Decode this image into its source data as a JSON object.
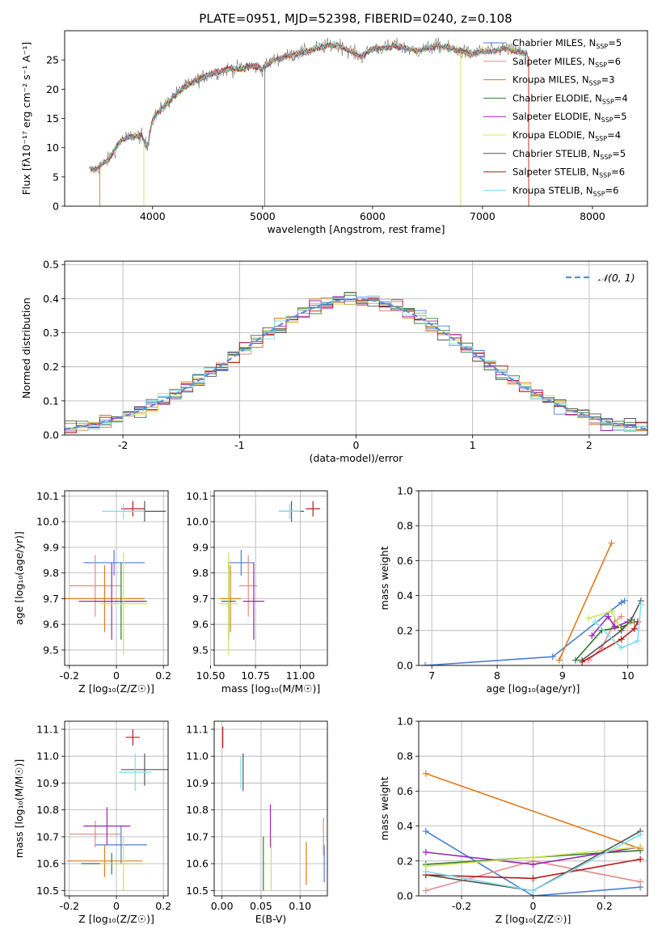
{
  "colors": {
    "chabrier_miles": "#4a7fd4",
    "salpeter_miles": "#e38b8b",
    "kroupa_miles": "#e07b1a",
    "chabrier_elodie": "#2e7d32",
    "salpeter_elodie": "#9c27b0",
    "kroupa_elodie": "#d4e157",
    "chabrier_stelib": "#555555",
    "salpeter_stelib": "#b71c1c",
    "kroupa_stelib": "#80deea",
    "normal_curve": "#5b8fd6",
    "grid": "#b0b0b0"
  },
  "chart_data": [
    {
      "type": "line",
      "panel": "spectrum",
      "title": "PLATE=0951, MJD=52398, FIBERID=0240, z=0.108",
      "xlabel": "wavelength [Angstrom, rest frame]",
      "ylabel": "Flux [fλ10⁻¹⁷ erg cm⁻² s⁻¹ A⁻¹]",
      "xlim": [
        3200,
        8500
      ],
      "ylim": [
        0,
        30
      ],
      "xticks": [
        "4000",
        "5000",
        "6000",
        "7000",
        "8000"
      ],
      "yticks": [
        "0",
        "5",
        "10",
        "15",
        "20",
        "25"
      ],
      "grid": false,
      "legend_position": "top-right",
      "continuum": {
        "x": [
          3420,
          3500,
          3600,
          3700,
          3800,
          3900,
          3950,
          4000,
          4100,
          4200,
          4300,
          4400,
          4500,
          4600,
          4700,
          4800,
          4900,
          5000,
          5100,
          5200,
          5300,
          5400,
          5500,
          5600,
          5700,
          5800,
          5900,
          6000,
          6100,
          6200,
          6300,
          6400,
          6500,
          6600,
          6700,
          6800,
          6900,
          7000,
          7100,
          7200,
          7300,
          7400,
          7425
        ],
        "y": [
          6,
          6.5,
          8,
          11,
          12,
          12,
          10,
          15,
          17,
          19,
          20.5,
          21.5,
          22.5,
          23,
          23.5,
          23.5,
          24,
          23.5,
          25,
          25.5,
          26,
          26.5,
          27,
          27.5,
          27.5,
          26.5,
          25.5,
          27,
          27,
          27.5,
          27,
          26.5,
          27,
          27.5,
          27,
          26.5,
          26,
          26.5,
          26.5,
          27,
          26.5,
          26,
          25.5
        ]
      },
      "legend": [
        {
          "key": "chabrier_miles",
          "label": "Chabrier MILES, N",
          "n": "5"
        },
        {
          "key": "salpeter_miles",
          "label": "Salpeter MILES, N",
          "n": "6"
        },
        {
          "key": "kroupa_miles",
          "label": "Kroupa MILES, N",
          "n": "3"
        },
        {
          "key": "chabrier_elodie",
          "label": "Chabrier ELODIE, N",
          "n": "4"
        },
        {
          "key": "salpeter_elodie",
          "label": "Salpeter ELODIE, N",
          "n": "5"
        },
        {
          "key": "kroupa_elodie",
          "label": "Kroupa ELODIE, N",
          "n": "4"
        },
        {
          "key": "chabrier_stelib",
          "label": "Chabrier STELIB, N",
          "n": "5"
        },
        {
          "key": "salpeter_stelib",
          "label": "Salpeter STELIB, N",
          "n": "6"
        },
        {
          "key": "kroupa_stelib",
          "label": "Kroupa STELIB, N",
          "n": "6"
        }
      ],
      "legend_subscript": "SSP"
    },
    {
      "type": "line",
      "panel": "residuals",
      "xlabel": "(data-model)/error",
      "ylabel": "Normed distribution",
      "xlim": [
        -2.5,
        2.5
      ],
      "ylim": [
        0,
        0.51
      ],
      "xticks": [
        -2,
        -1,
        0,
        1,
        2
      ],
      "yticks": [
        0.0,
        0.1,
        0.2,
        0.3,
        0.4,
        0.5
      ],
      "grid": true,
      "legend_position": "top-right",
      "curve_label": "𝒩(0, 1)",
      "bin_width": 0.1
    },
    {
      "type": "scatter",
      "panel": "age_vs_Z",
      "xlabel": "Z [log₁₀(Z/Z☉)]",
      "ylabel": "age  [log₁₀(age/yr)]",
      "xlim": [
        -0.22,
        0.22
      ],
      "ylim": [
        9.44,
        10.12
      ],
      "xticks": [
        -0.2,
        0.0,
        0.2
      ],
      "yticks": [
        9.5,
        9.6,
        9.7,
        9.8,
        9.9,
        10.0,
        10.1
      ],
      "grid": true,
      "points": [
        {
          "key": "chabrier_miles",
          "x": -0.01,
          "xerr": 0.13,
          "y": 9.84,
          "yerr": 0.05
        },
        {
          "key": "salpeter_miles",
          "x": -0.09,
          "xerr": 0.11,
          "y": 9.75,
          "yerr": 0.12
        },
        {
          "key": "kroupa_miles",
          "x": -0.05,
          "xerr": 0.17,
          "y": 9.7,
          "yerr": 0.13
        },
        {
          "key": "chabrier_elodie",
          "x": 0.02,
          "xerr": 0.11,
          "y": 9.69,
          "yerr": 0.15
        },
        {
          "key": "salpeter_elodie",
          "x": -0.02,
          "xerr": 0.14,
          "y": 9.69,
          "yerr": 0.15
        },
        {
          "key": "kroupa_elodie",
          "x": 0.03,
          "xerr": 0.1,
          "y": 9.68,
          "yerr": 0.2
        },
        {
          "key": "chabrier_stelib",
          "x": 0.12,
          "xerr": 0.09,
          "y": 10.04,
          "yerr": 0.04
        },
        {
          "key": "salpeter_stelib",
          "x": 0.07,
          "xerr": 0.05,
          "y": 10.05,
          "yerr": 0.03
        },
        {
          "key": "kroupa_stelib",
          "x": 0.03,
          "xerr": 0.09,
          "y": 10.04,
          "yerr": 0.03
        }
      ]
    },
    {
      "type": "scatter",
      "panel": "age_vs_mass",
      "xlabel": "mass [log₁₀(M/M☉)]",
      "xlim": [
        10.52,
        11.15
      ],
      "ylim": [
        9.44,
        10.12
      ],
      "xticks": [
        "10.50",
        "10.75",
        "11.00"
      ],
      "xtick_values": [
        10.5,
        10.75,
        11.0
      ],
      "yticks": [
        9.5,
        9.6,
        9.7,
        9.8,
        9.9,
        10.0,
        10.1
      ],
      "grid": true,
      "points": [
        {
          "key": "chabrier_miles",
          "x": 10.67,
          "xerr": 0.07,
          "y": 9.84,
          "yerr": 0.05
        },
        {
          "key": "salpeter_miles",
          "x": 10.71,
          "xerr": 0.05,
          "y": 9.75,
          "yerr": 0.12
        },
        {
          "key": "kroupa_miles",
          "x": 10.61,
          "xerr": 0.06,
          "y": 9.7,
          "yerr": 0.13
        },
        {
          "key": "chabrier_elodie",
          "x": 10.6,
          "xerr": 0.04,
          "y": 9.69,
          "yerr": 0.15
        },
        {
          "key": "salpeter_elodie",
          "x": 10.74,
          "xerr": 0.06,
          "y": 9.69,
          "yerr": 0.15
        },
        {
          "key": "kroupa_elodie",
          "x": 10.6,
          "xerr": 0.05,
          "y": 9.68,
          "yerr": 0.2
        },
        {
          "key": "chabrier_stelib",
          "x": 10.95,
          "xerr": 0.07,
          "y": 10.04,
          "yerr": 0.04
        },
        {
          "key": "salpeter_stelib",
          "x": 11.07,
          "xerr": 0.04,
          "y": 10.05,
          "yerr": 0.03
        },
        {
          "key": "kroupa_stelib",
          "x": 10.94,
          "xerr": 0.06,
          "y": 10.04,
          "yerr": 0.03
        }
      ]
    },
    {
      "type": "line",
      "panel": "mass_weight_vs_age",
      "xlabel": "age  [log₁₀(age/yr)]",
      "ylabel": "mass weight",
      "xlim": [
        6.8,
        10.3
      ],
      "ylim": [
        0,
        1
      ],
      "xticks": [
        7,
        8,
        9,
        10
      ],
      "yticks": [
        0.0,
        0.2,
        0.4,
        0.6,
        0.8,
        1.0
      ],
      "grid": true,
      "series": [
        {
          "key": "chabrier_miles",
          "x": [
            6.9,
            8.85,
            9.9,
            9.95
          ],
          "y": [
            0.0,
            0.05,
            0.36,
            0.37
          ]
        },
        {
          "key": "salpeter_miles",
          "x": [
            9.4,
            9.6,
            9.8,
            9.9
          ],
          "y": [
            0.03,
            0.1,
            0.25,
            0.28
          ]
        },
        {
          "key": "kroupa_miles",
          "x": [
            8.95,
            9.75
          ],
          "y": [
            0.03,
            0.7
          ]
        },
        {
          "key": "chabrier_elodie",
          "x": [
            9.2,
            9.6,
            9.9,
            10.1
          ],
          "y": [
            0.03,
            0.2,
            0.22,
            0.25
          ]
        },
        {
          "key": "salpeter_elodie",
          "x": [
            9.45,
            9.7,
            9.8,
            10.0
          ],
          "y": [
            0.17,
            0.28,
            0.22,
            0.25
          ]
        },
        {
          "key": "kroupa_elodie",
          "x": [
            9.4,
            9.75,
            9.9,
            10.05
          ],
          "y": [
            0.27,
            0.31,
            0.2,
            0.25
          ]
        },
        {
          "key": "chabrier_stelib",
          "x": [
            9.3,
            9.9,
            10.05,
            10.2
          ],
          "y": [
            0.03,
            0.2,
            0.26,
            0.37
          ]
        },
        {
          "key": "salpeter_stelib",
          "x": [
            9.3,
            9.9,
            10.1,
            10.15
          ],
          "y": [
            0.02,
            0.15,
            0.21,
            0.25
          ]
        },
        {
          "key": "kroupa_stelib",
          "x": [
            9.5,
            9.9,
            10.15,
            10.2
          ],
          "y": [
            0.25,
            0.1,
            0.14,
            0.35
          ]
        }
      ]
    },
    {
      "type": "scatter",
      "panel": "mass_vs_Z",
      "xlabel": "Z [log₁₀(Z/Z☉)]",
      "ylabel": "mass [log₁₀(M/M☉)]",
      "xlim": [
        -0.22,
        0.22
      ],
      "ylim": [
        10.48,
        11.13
      ],
      "xticks": [
        -0.2,
        0.0,
        0.2
      ],
      "yticks": [
        10.5,
        10.6,
        10.7,
        10.8,
        10.9,
        11.0,
        11.1
      ],
      "grid": true,
      "points": [
        {
          "key": "chabrier_miles",
          "x": 0.02,
          "xerr": 0.11,
          "y": 10.67,
          "yerr": 0.07
        },
        {
          "key": "salpeter_miles",
          "x": -0.09,
          "xerr": 0.11,
          "y": 10.71,
          "yerr": 0.05
        },
        {
          "key": "kroupa_miles",
          "x": -0.05,
          "xerr": 0.16,
          "y": 10.61,
          "yerr": 0.06
        },
        {
          "key": "chabrier_elodie",
          "x": -0.02,
          "xerr": 0.13,
          "y": 10.6,
          "yerr": 0.04
        },
        {
          "key": "salpeter_elodie",
          "x": -0.04,
          "xerr": 0.1,
          "y": 10.74,
          "yerr": 0.07
        },
        {
          "key": "kroupa_elodie",
          "x": 0.03,
          "xerr": 0.1,
          "y": 10.6,
          "yerr": 0.1
        },
        {
          "key": "chabrier_stelib",
          "x": 0.12,
          "xerr": 0.1,
          "y": 10.95,
          "yerr": 0.06
        },
        {
          "key": "salpeter_stelib",
          "x": 0.07,
          "xerr": 0.03,
          "y": 11.07,
          "yerr": 0.03
        },
        {
          "key": "kroupa_stelib",
          "x": 0.08,
          "xerr": 0.07,
          "y": 10.94,
          "yerr": 0.07
        }
      ]
    },
    {
      "type": "scatter",
      "panel": "mass_vs_ebv",
      "xlabel": "E(B-V)",
      "xlim": [
        -0.01,
        0.135
      ],
      "ylim": [
        10.48,
        11.13
      ],
      "xticks": [
        "0.00",
        "0.05",
        "0.10"
      ],
      "xtick_values": [
        0.0,
        0.05,
        0.1
      ],
      "yticks": [
        10.5,
        10.6,
        10.7,
        10.8,
        10.9,
        11.0,
        11.1
      ],
      "grid": true,
      "points": [
        {
          "key": "chabrier_miles",
          "x": 0.131,
          "y": 10.6,
          "yerr": 0.07
        },
        {
          "key": "salpeter_miles",
          "x": 0.13,
          "y": 10.7,
          "yerr": 0.07
        },
        {
          "key": "kroupa_miles",
          "x": 0.108,
          "y": 10.6,
          "yerr": 0.08
        },
        {
          "key": "chabrier_elodie",
          "x": 0.053,
          "y": 10.6,
          "yerr": 0.1
        },
        {
          "key": "salpeter_elodie",
          "x": 0.062,
          "y": 10.74,
          "yerr": 0.08
        },
        {
          "key": "kroupa_elodie",
          "x": 0.063,
          "y": 10.6,
          "yerr": 0.1
        },
        {
          "key": "chabrier_stelib",
          "x": 0.027,
          "y": 10.94,
          "yerr": 0.07
        },
        {
          "key": "salpeter_stelib",
          "x": 0.001,
          "y": 11.07,
          "yerr": 0.04
        },
        {
          "key": "kroupa_stelib",
          "x": 0.024,
          "y": 10.94,
          "yerr": 0.06
        }
      ]
    },
    {
      "type": "line",
      "panel": "mass_weight_vs_Z",
      "xlabel": "Z [log₁₀(Z/Z☉)]",
      "ylabel": "mass weight",
      "xlim": [
        -0.32,
        0.32
      ],
      "ylim": [
        0,
        1
      ],
      "xticks": [
        -0.2,
        0.0,
        0.2
      ],
      "yticks": [
        0.0,
        0.2,
        0.4,
        0.6,
        0.8,
        1.0
      ],
      "grid": true,
      "series": [
        {
          "key": "chabrier_miles",
          "x": [
            -0.3,
            0.0,
            0.3
          ],
          "y": [
            0.37,
            0.0,
            0.05
          ]
        },
        {
          "key": "salpeter_miles",
          "x": [
            -0.3,
            0.0,
            0.3
          ],
          "y": [
            0.03,
            0.2,
            0.08
          ]
        },
        {
          "key": "kroupa_miles",
          "x": [
            -0.3,
            0.3
          ],
          "y": [
            0.7,
            0.27
          ]
        },
        {
          "key": "chabrier_elodie",
          "x": [
            -0.3,
            0.0,
            0.3
          ],
          "y": [
            0.18,
            0.22,
            0.26
          ]
        },
        {
          "key": "salpeter_elodie",
          "x": [
            -0.3,
            0.0,
            0.3
          ],
          "y": [
            0.25,
            0.18,
            0.28
          ]
        },
        {
          "key": "kroupa_elodie",
          "x": [
            -0.3,
            0.0,
            0.3
          ],
          "y": [
            0.17,
            0.22,
            0.28
          ]
        },
        {
          "key": "chabrier_stelib",
          "x": [
            -0.3,
            0.0,
            0.3
          ],
          "y": [
            0.12,
            0.03,
            0.37
          ]
        },
        {
          "key": "salpeter_stelib",
          "x": [
            -0.3,
            0.0,
            0.3
          ],
          "y": [
            0.12,
            0.1,
            0.21
          ]
        },
        {
          "key": "kroupa_stelib",
          "x": [
            -0.3,
            0.0,
            0.3
          ],
          "y": [
            0.14,
            0.03,
            0.35
          ]
        }
      ]
    }
  ]
}
